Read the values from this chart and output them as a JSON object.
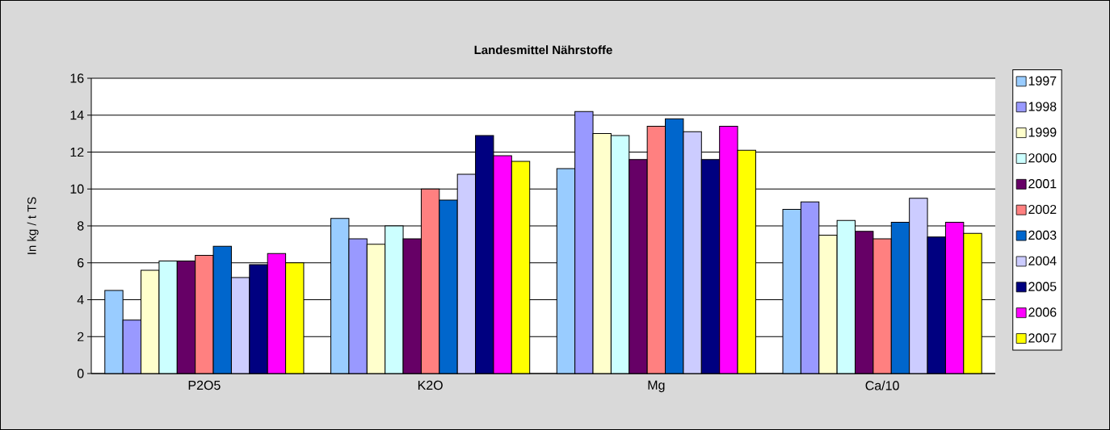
{
  "chart_data": {
    "type": "bar",
    "title": "Landesmittel Nährstoffe",
    "ylabel": "In kg / t TS",
    "categories": [
      "P2O5",
      "K2O",
      "Mg",
      "Ca/10"
    ],
    "series": [
      {
        "name": "1997",
        "color": "#99ccff",
        "values": [
          4.5,
          8.4,
          11.1,
          8.9
        ]
      },
      {
        "name": "1998",
        "color": "#9999ff",
        "values": [
          2.9,
          7.3,
          14.2,
          9.3
        ]
      },
      {
        "name": "1999",
        "color": "#ffffcc",
        "values": [
          5.6,
          7.0,
          13.0,
          7.5
        ]
      },
      {
        "name": "2000",
        "color": "#ccffff",
        "values": [
          6.1,
          8.0,
          12.9,
          8.3
        ]
      },
      {
        "name": "2001",
        "color": "#660066",
        "values": [
          6.1,
          7.3,
          11.6,
          7.7
        ]
      },
      {
        "name": "2002",
        "color": "#ff8080",
        "values": [
          6.4,
          10.0,
          13.4,
          7.3
        ]
      },
      {
        "name": "2003",
        "color": "#0066cc",
        "values": [
          6.9,
          9.4,
          13.8,
          8.2
        ]
      },
      {
        "name": "2004",
        "color": "#ccccff",
        "values": [
          5.2,
          10.8,
          13.1,
          9.5
        ]
      },
      {
        "name": "2005",
        "color": "#000080",
        "values": [
          5.9,
          12.9,
          11.6,
          7.4
        ]
      },
      {
        "name": "2006",
        "color": "#ff00ff",
        "values": [
          6.5,
          11.8,
          13.4,
          8.2
        ]
      },
      {
        "name": "2007",
        "color": "#ffff00",
        "values": [
          6.0,
          11.5,
          12.1,
          7.6
        ]
      }
    ],
    "ylim": [
      0,
      16
    ],
    "yticks": [
      0,
      2,
      4,
      6,
      8,
      10,
      12,
      14,
      16
    ],
    "grid": "y",
    "legend": "right"
  }
}
